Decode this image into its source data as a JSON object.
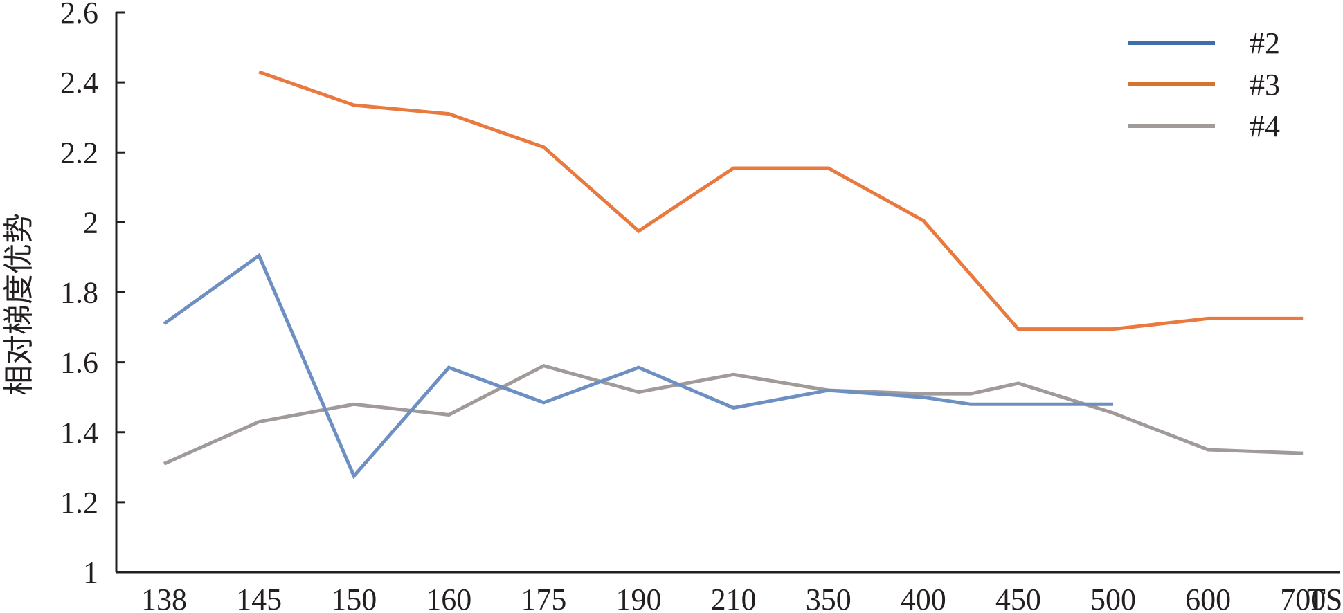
{
  "chart_data": {
    "type": "line",
    "title": "",
    "xlabel": "TS",
    "ylabel": "相对梯度优势",
    "categories": [
      "138",
      "145",
      "150",
      "160",
      "175",
      "190",
      "210",
      "350",
      "400",
      "450",
      "500",
      "600",
      "700"
    ],
    "ylim": [
      1,
      2.6
    ],
    "yticks": [
      "1",
      "1.2",
      "1.4",
      "1.6",
      "1.8",
      "2",
      "2.2",
      "2.4",
      "2.6"
    ],
    "grid": false,
    "legend_position": "top-right",
    "series": [
      {
        "name": "#2",
        "color": "#6d8fc2",
        "legend_color": "#3f6faa",
        "points": [
          {
            "x": 0,
            "y": 1.71
          },
          {
            "x": 1,
            "y": 1.905
          },
          {
            "x": 2,
            "y": 1.275
          },
          {
            "x": 3,
            "y": 1.585
          },
          {
            "x": 4,
            "y": 1.485
          },
          {
            "x": 5,
            "y": 1.585
          },
          {
            "x": 6,
            "y": 1.47
          },
          {
            "x": 7,
            "y": 1.52
          },
          {
            "x": 8,
            "y": 1.5
          },
          {
            "x": 8.5,
            "y": 1.48
          },
          {
            "x": 9,
            "y": 1.48
          },
          {
            "x": 10,
            "y": 1.48
          }
        ]
      },
      {
        "name": "#3",
        "color": "#e8793f",
        "legend_color": "#d8732f",
        "points": [
          {
            "x": 1,
            "y": 2.43
          },
          {
            "x": 2,
            "y": 2.335
          },
          {
            "x": 3,
            "y": 2.31
          },
          {
            "x": 4,
            "y": 2.215
          },
          {
            "x": 5,
            "y": 1.975
          },
          {
            "x": 6,
            "y": 2.155
          },
          {
            "x": 7,
            "y": 2.155
          },
          {
            "x": 8,
            "y": 2.005
          },
          {
            "x": 9,
            "y": 1.695
          },
          {
            "x": 10,
            "y": 1.695
          },
          {
            "x": 11,
            "y": 1.725
          },
          {
            "x": 12,
            "y": 1.725
          }
        ]
      },
      {
        "name": "#4",
        "color": "#a09a99",
        "legend_color": "#a09a99",
        "points": [
          {
            "x": 0,
            "y": 1.31
          },
          {
            "x": 1,
            "y": 1.43
          },
          {
            "x": 2,
            "y": 1.48
          },
          {
            "x": 3,
            "y": 1.45
          },
          {
            "x": 4,
            "y": 1.59
          },
          {
            "x": 5,
            "y": 1.515
          },
          {
            "x": 6,
            "y": 1.565
          },
          {
            "x": 7,
            "y": 1.52
          },
          {
            "x": 8,
            "y": 1.51
          },
          {
            "x": 8.5,
            "y": 1.51
          },
          {
            "x": 9,
            "y": 1.54
          },
          {
            "x": 10,
            "y": 1.455
          },
          {
            "x": 11,
            "y": 1.35
          },
          {
            "x": 12,
            "y": 1.34
          }
        ]
      }
    ]
  }
}
